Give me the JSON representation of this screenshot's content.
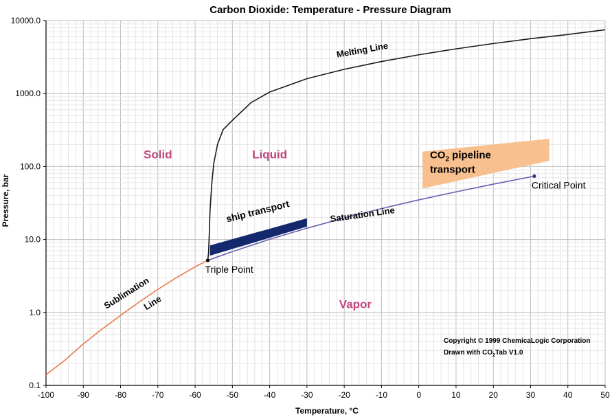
{
  "chart_data": {
    "type": "line",
    "title": "Carbon Dioxide: Temperature - Pressure Diagram",
    "xlabel": "Temperature, °C",
    "ylabel": "Pressure, bar",
    "xlim": [
      -100,
      50
    ],
    "ylim": [
      0.1,
      10000
    ],
    "yscale": "log",
    "grid": true,
    "x_ticks": [
      -100,
      -90,
      -80,
      -70,
      -60,
      -50,
      -40,
      -30,
      -20,
      -10,
      0,
      10,
      20,
      30,
      40,
      50
    ],
    "y_ticks": [
      {
        "value": 0.1,
        "label": "0.1"
      },
      {
        "value": 1,
        "label": "1.0"
      },
      {
        "value": 10,
        "label": "10.0"
      },
      {
        "value": 100,
        "label": "100.0"
      },
      {
        "value": 1000,
        "label": "1000.0"
      },
      {
        "value": 10000,
        "label": "10000.0"
      }
    ],
    "series": [
      {
        "name": "Sublimation Line",
        "color": "#e8794a",
        "x": [
          -100,
          -95,
          -90,
          -85,
          -80,
          -75,
          -70,
          -65,
          -60,
          -56.6
        ],
        "y": [
          0.14,
          0.22,
          0.37,
          0.59,
          0.91,
          1.39,
          2.07,
          3.0,
          4.22,
          5.18
        ]
      },
      {
        "name": "Saturation Line",
        "color": "#6a5fb0",
        "x": [
          -56.6,
          -50,
          -40,
          -30,
          -20,
          -10,
          0,
          10,
          20,
          31
        ],
        "y": [
          5.18,
          6.82,
          10.05,
          14.28,
          19.7,
          26.5,
          34.9,
          45.0,
          57.3,
          73.8
        ]
      },
      {
        "name": "Melting Line",
        "color": "#1a1a1a",
        "x": [
          -56.6,
          -56.4,
          -56.2,
          -56.0,
          -55.5,
          -55.0,
          -54.0,
          -52.5,
          -50.0,
          -45.0,
          -40.0,
          -30.0,
          -20.0,
          -10.0,
          0.0,
          10.0,
          20.0,
          30.0,
          40.0,
          50.0
        ],
        "y": [
          5.18,
          6.5,
          12.0,
          25.0,
          60.0,
          110.0,
          200.0,
          320.0,
          430.0,
          750.0,
          1050.0,
          1600.0,
          2150.0,
          2750.0,
          3400.0,
          4100.0,
          4850.0,
          5650.0,
          6450.0,
          7500.0
        ]
      }
    ],
    "points": [
      {
        "name": "Triple Point",
        "label": "Triple Point",
        "x": -56.6,
        "y": 5.18
      },
      {
        "name": "Critical Point",
        "label": "Critical Point",
        "x": 31,
        "y": 73.8
      }
    ],
    "regions": [
      {
        "name": "ship transport",
        "label": "ship transport",
        "color": "#14286e",
        "x": [
          -56,
          -30,
          -30,
          -56
        ],
        "y": [
          6.0,
          15.0,
          19.5,
          8.3
        ]
      },
      {
        "name": "CO2 pipeline transport",
        "label_main": "CO",
        "label_sub": "2",
        "label_rest": " pipeline",
        "label_line2": "transport",
        "color": "#f7c08e",
        "x": [
          1,
          35,
          35,
          1
        ],
        "y": [
          50,
          120,
          240,
          160
        ]
      }
    ],
    "annotations": [
      {
        "name": "solid",
        "text": "Solid",
        "x": -70,
        "y": 130,
        "color": "#c0457e"
      },
      {
        "name": "liquid",
        "text": "Liquid",
        "x": -40,
        "y": 130,
        "color": "#c0457e"
      },
      {
        "name": "vapor",
        "text": "Vapor",
        "x": -17,
        "y": 1.15,
        "color": "#c0457e"
      },
      {
        "name": "melting-line",
        "text": "Melting Line",
        "x": -15,
        "y": 3600,
        "color": "#000000"
      },
      {
        "name": "saturation-line",
        "text": "Saturation Line",
        "x": -15,
        "y": 20,
        "color": "#000000"
      },
      {
        "name": "sublimation-line-1",
        "text": "Sublimation",
        "x": -78,
        "y": 1.7,
        "color": "#000000"
      },
      {
        "name": "sublimation-line-2",
        "text": "Line",
        "x": -71,
        "y": 1.25,
        "color": "#000000"
      }
    ],
    "copyright": [
      "Copyright © 1999 ChemicaLogic Corporation",
      "Drawn with CO",
      "2",
      "Tab V1.0"
    ]
  }
}
